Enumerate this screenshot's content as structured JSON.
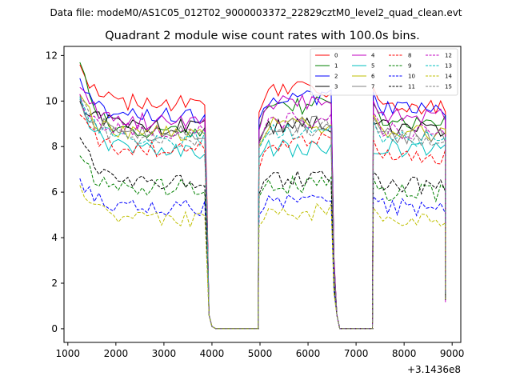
{
  "chart_data": {
    "type": "line",
    "suptitle": "Data file: modeM0/AS1C05_012T02_9000003372_22829cztM0_level2_quad_clean.evt",
    "title": "Quadrant 2 module wise count rates with 100.0s bins.",
    "xlabel": "",
    "ylabel": "",
    "x_offset_label": "+3.1436e8",
    "xlim": [
      920,
      9180
    ],
    "ylim": [
      -0.6,
      12.4
    ],
    "x_ticks": [
      1000,
      2000,
      3000,
      4000,
      5000,
      6000,
      7000,
      8000,
      9000
    ],
    "y_ticks": [
      0,
      2,
      4,
      6,
      8,
      10,
      12
    ],
    "x_tick_labels": [
      "1000",
      "2000",
      "3000",
      "4000",
      "5000",
      "6000",
      "7000",
      "8000",
      "9000"
    ],
    "y_tick_labels": [
      "0",
      "2",
      "4",
      "6",
      "8",
      "10",
      "12"
    ],
    "legend_position": "top-right",
    "segments": [
      {
        "x_start": 1250,
        "x_end": 3880,
        "step": 100
      },
      {
        "x_start": 4980,
        "x_end": 6480,
        "step": 100
      },
      {
        "x_start": 7360,
        "x_end": 8860,
        "step": 100
      }
    ],
    "gaps": [
      {
        "x_start": 3880,
        "x_end": 4980
      },
      {
        "x_start": 6480,
        "x_end": 7360
      }
    ],
    "series": [
      {
        "name": "0",
        "color": "#ff0000",
        "dash": "solid",
        "s1_start": 11.6,
        "s1_level": 9.9,
        "s2_start": 9.5,
        "s2_level": 10.5,
        "s3_start": 10.6,
        "s3_level": 9.7
      },
      {
        "name": "1",
        "color": "#008000",
        "dash": "solid",
        "s1_start": 11.7,
        "s1_level": 8.6,
        "s2_start": 8.8,
        "s2_level": 9.8,
        "s3_start": 9.9,
        "s3_level": 9.1
      },
      {
        "name": "2",
        "color": "#0000ff",
        "dash": "solid",
        "s1_start": 11.0,
        "s1_level": 9.4,
        "s2_start": 9.2,
        "s2_level": 10.2,
        "s3_start": 10.4,
        "s3_level": 9.6
      },
      {
        "name": "3",
        "color": "#000000",
        "dash": "solid",
        "s1_start": 10.0,
        "s1_level": 8.9,
        "s2_start": 8.2,
        "s2_level": 8.9,
        "s3_start": 9.0,
        "s3_level": 8.8
      },
      {
        "name": "4",
        "color": "#c000c0",
        "dash": "solid",
        "s1_start": 10.6,
        "s1_level": 9.1,
        "s2_start": 8.7,
        "s2_level": 9.9,
        "s3_start": 10.0,
        "s3_level": 9.3
      },
      {
        "name": "5",
        "color": "#00bfbf",
        "dash": "solid",
        "s1_start": 10.2,
        "s1_level": 7.8,
        "s2_start": 7.5,
        "s2_level": 7.9,
        "s3_start": 7.7,
        "s3_level": 7.9
      },
      {
        "name": "6",
        "color": "#bfbf00",
        "dash": "solid",
        "s1_start": 10.3,
        "s1_level": 8.6,
        "s2_start": 8.0,
        "s2_level": 8.9,
        "s3_start": 9.4,
        "s3_level": 8.6
      },
      {
        "name": "7",
        "color": "#808080",
        "dash": "solid",
        "s1_start": 10.1,
        "s1_level": 8.6,
        "s2_start": 8.3,
        "s2_level": 9.0,
        "s3_start": 9.3,
        "s3_level": 8.5
      },
      {
        "name": "8",
        "color": "#ff0000",
        "dash": "dashed",
        "s1_start": 9.4,
        "s1_level": 7.9,
        "s2_start": 7.0,
        "s2_level": 8.2,
        "s3_start": 8.3,
        "s3_level": 7.6
      },
      {
        "name": "9",
        "color": "#008000",
        "dash": "dashed",
        "s1_start": 7.6,
        "s1_level": 6.2,
        "s2_start": 5.8,
        "s2_level": 6.3,
        "s3_start": 6.6,
        "s3_level": 6.0
      },
      {
        "name": "10",
        "color": "#0000ff",
        "dash": "dashed",
        "s1_start": 6.6,
        "s1_level": 5.3,
        "s2_start": 5.0,
        "s2_level": 5.5,
        "s3_start": 5.8,
        "s3_level": 5.3
      },
      {
        "name": "11",
        "color": "#000000",
        "dash": "dashed",
        "s1_start": 8.4,
        "s1_level": 6.4,
        "s2_start": 5.9,
        "s2_level": 6.6,
        "s3_start": 6.9,
        "s3_level": 6.3
      },
      {
        "name": "12",
        "color": "#c000c0",
        "dash": "dashed",
        "s1_start": 10.3,
        "s1_level": 8.7,
        "s2_start": 8.2,
        "s2_level": 9.1,
        "s3_start": 9.5,
        "s3_level": 8.7
      },
      {
        "name": "13",
        "color": "#00bfbf",
        "dash": "dashed",
        "s1_start": 10.1,
        "s1_level": 8.3,
        "s2_start": 7.9,
        "s2_level": 8.7,
        "s3_start": 9.1,
        "s3_level": 8.3
      },
      {
        "name": "14",
        "color": "#bfbf00",
        "dash": "dashed",
        "s1_start": 6.3,
        "s1_level": 4.8,
        "s2_start": 4.5,
        "s2_level": 5.1,
        "s3_start": 5.3,
        "s3_level": 4.8
      },
      {
        "name": "15",
        "color": "#808080",
        "dash": "dashed",
        "s1_start": 10.2,
        "s1_level": 8.4,
        "s2_start": 8.1,
        "s2_level": 8.8,
        "s3_start": 9.2,
        "s3_level": 8.4
      }
    ]
  }
}
